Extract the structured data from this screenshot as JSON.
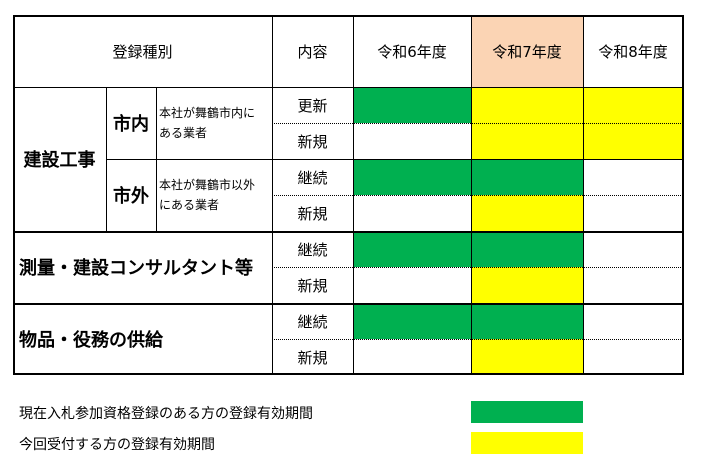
{
  "colors": {
    "registered": "#00b050",
    "new_accept": "#ffff00",
    "current_year_header": "#fbd4b4"
  },
  "header": {
    "category": "登録種別",
    "content": "内容",
    "year6": "令和6年度",
    "year7": "令和7年度",
    "year8": "令和8年度"
  },
  "construction": {
    "label": "建設工事",
    "inside": {
      "label": "市内",
      "note": "本社が舞鶴市内にある業者"
    },
    "outside": {
      "label": "市外",
      "note": "本社が舞鶴市以外にある業者"
    }
  },
  "survey": {
    "label": "測量・建設コンサルタント等"
  },
  "goods": {
    "label": "物品・役務の供給"
  },
  "rows": [
    {
      "content": "更新",
      "cells": [
        "green",
        "yellow",
        "yellow"
      ]
    },
    {
      "content": "新規",
      "cells": [
        "white",
        "yellow",
        "yellow"
      ]
    },
    {
      "content": "継続",
      "cells": [
        "green",
        "green",
        "white"
      ]
    },
    {
      "content": "新規",
      "cells": [
        "white",
        "yellow",
        "white"
      ]
    },
    {
      "content": "継続",
      "cells": [
        "green",
        "green",
        "white"
      ]
    },
    {
      "content": "新規",
      "cells": [
        "white",
        "yellow",
        "white"
      ]
    },
    {
      "content": "継続",
      "cells": [
        "green",
        "green",
        "white"
      ]
    },
    {
      "content": "新規",
      "cells": [
        "white",
        "yellow",
        "white"
      ]
    }
  ],
  "legend": {
    "registered": "現在入札参加資格登録のある方の登録有効期間",
    "new_accept": "今回受付する方の登録有効期間"
  }
}
